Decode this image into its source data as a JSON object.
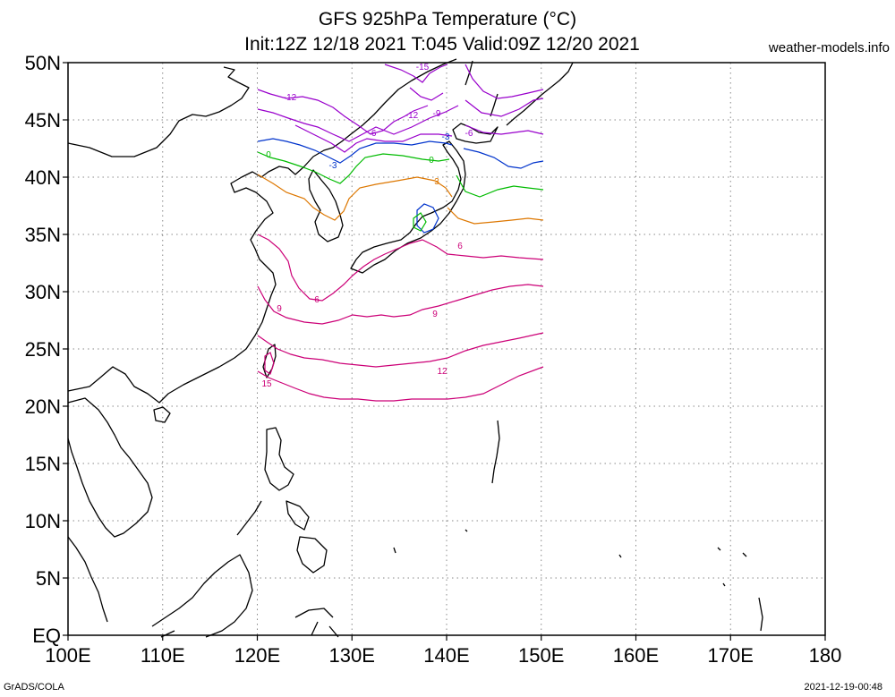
{
  "title": {
    "line1": "GFS 925hPa Temperature (°C)",
    "line2": "Init:12Z 12/18 2021 T:045 Valid:09Z 12/20 2021"
  },
  "site_credit": "weather-models.info",
  "footer": {
    "left": "GrADS/COLA",
    "right": "2021-12-19-00:48"
  },
  "axes": {
    "x_ticks": [
      "100E",
      "110E",
      "120E",
      "130E",
      "140E",
      "150E",
      "160E",
      "170E",
      "180"
    ],
    "y_ticks": [
      "50N",
      "45N",
      "40N",
      "35N",
      "30N",
      "25N",
      "20N",
      "15N",
      "10N",
      "5N",
      "EQ"
    ]
  },
  "map": {
    "projection": "lat-lon",
    "lon_range": [
      100,
      180
    ],
    "lat_range": [
      0,
      50
    ],
    "data_domain": {
      "lon": [
        120,
        150
      ],
      "lat": [
        20,
        50
      ]
    },
    "grid": "dotted"
  },
  "contours": [
    {
      "value": -15,
      "color": "#9900cc",
      "label": "-15"
    },
    {
      "value": -12,
      "color": "#9900cc",
      "label": "-12"
    },
    {
      "value": -9,
      "color": "#9900cc",
      "label": "-9"
    },
    {
      "value": -6,
      "color": "#9900cc",
      "label": "-6"
    },
    {
      "value": -3,
      "color": "#0033cc",
      "label": "-3"
    },
    {
      "value": 0,
      "color": "#00bb00",
      "label": "0"
    },
    {
      "value": 3,
      "color": "#dd7700",
      "label": "3"
    },
    {
      "value": 6,
      "color": "#cc0077",
      "label": "6"
    },
    {
      "value": 9,
      "color": "#cc0077",
      "label": "9"
    },
    {
      "value": 12,
      "color": "#cc0077",
      "label": "12"
    },
    {
      "value": 15,
      "color": "#cc0077",
      "label": "15"
    }
  ]
}
